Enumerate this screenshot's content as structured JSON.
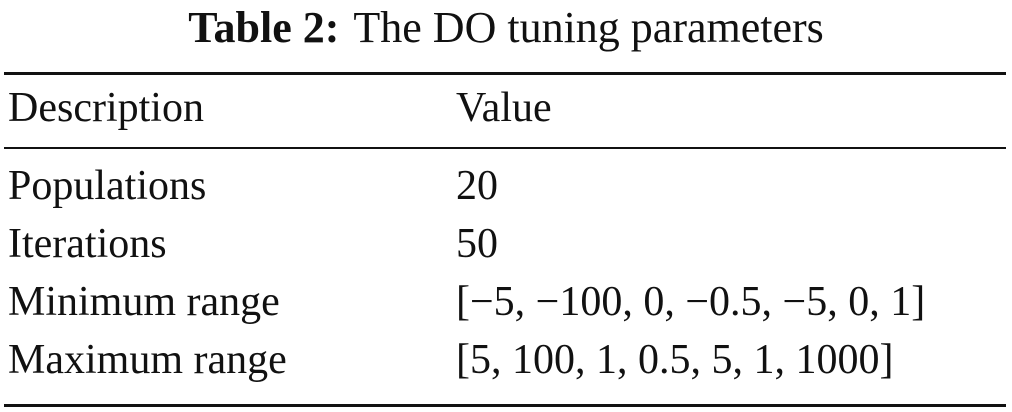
{
  "caption": {
    "label": "Table 2:",
    "text": "The DO tuning parameters"
  },
  "table": {
    "header": [
      "Description",
      "Value"
    ],
    "rows": [
      [
        "Populations",
        "20"
      ],
      [
        "Iterations",
        "50"
      ],
      [
        "Minimum range",
        "[−5, −100, 0, −0.5, −5, 0, 1]"
      ],
      [
        "Maximum range",
        "[5, 100, 1, 0.5, 5, 1, 1000]"
      ]
    ]
  }
}
